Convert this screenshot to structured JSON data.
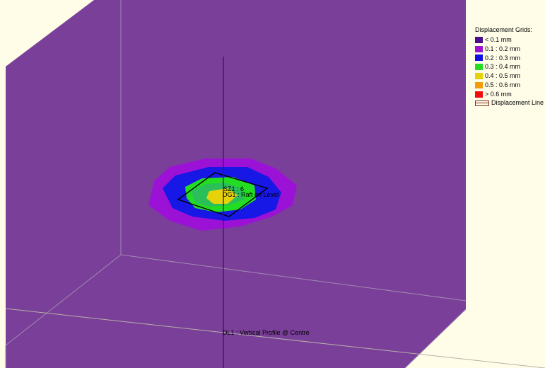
{
  "legend": {
    "title": "Displacement Grids:",
    "items": [
      {
        "label": "< 0.1 mm",
        "color": "#4b0f8a"
      },
      {
        "label": "0.1 : 0.2 mm",
        "color": "#9b12d6"
      },
      {
        "label": "0.2 : 0.3 mm",
        "color": "#0f0fe6"
      },
      {
        "label": "0.3 : 0.4 mm",
        "color": "#22dd22"
      },
      {
        "label": "0.4 : 0.5 mm",
        "color": "#e6d20a"
      },
      {
        "label": "0.5 : 0.6 mm",
        "color": "#f29c0a"
      },
      {
        "label": "> 0.6 mm",
        "color": "#f20c0c"
      }
    ],
    "line_label": "Displacement Line",
    "line_color": "#8b2b1d"
  },
  "labels": {
    "sz": "SZ1 : 6",
    "dg": "DG1 : Raft on Level",
    "dl": "DL1 : Vertical Profile @ Centre"
  },
  "colors": {
    "background": "#fffde8",
    "ground": "#7a3f99"
  }
}
